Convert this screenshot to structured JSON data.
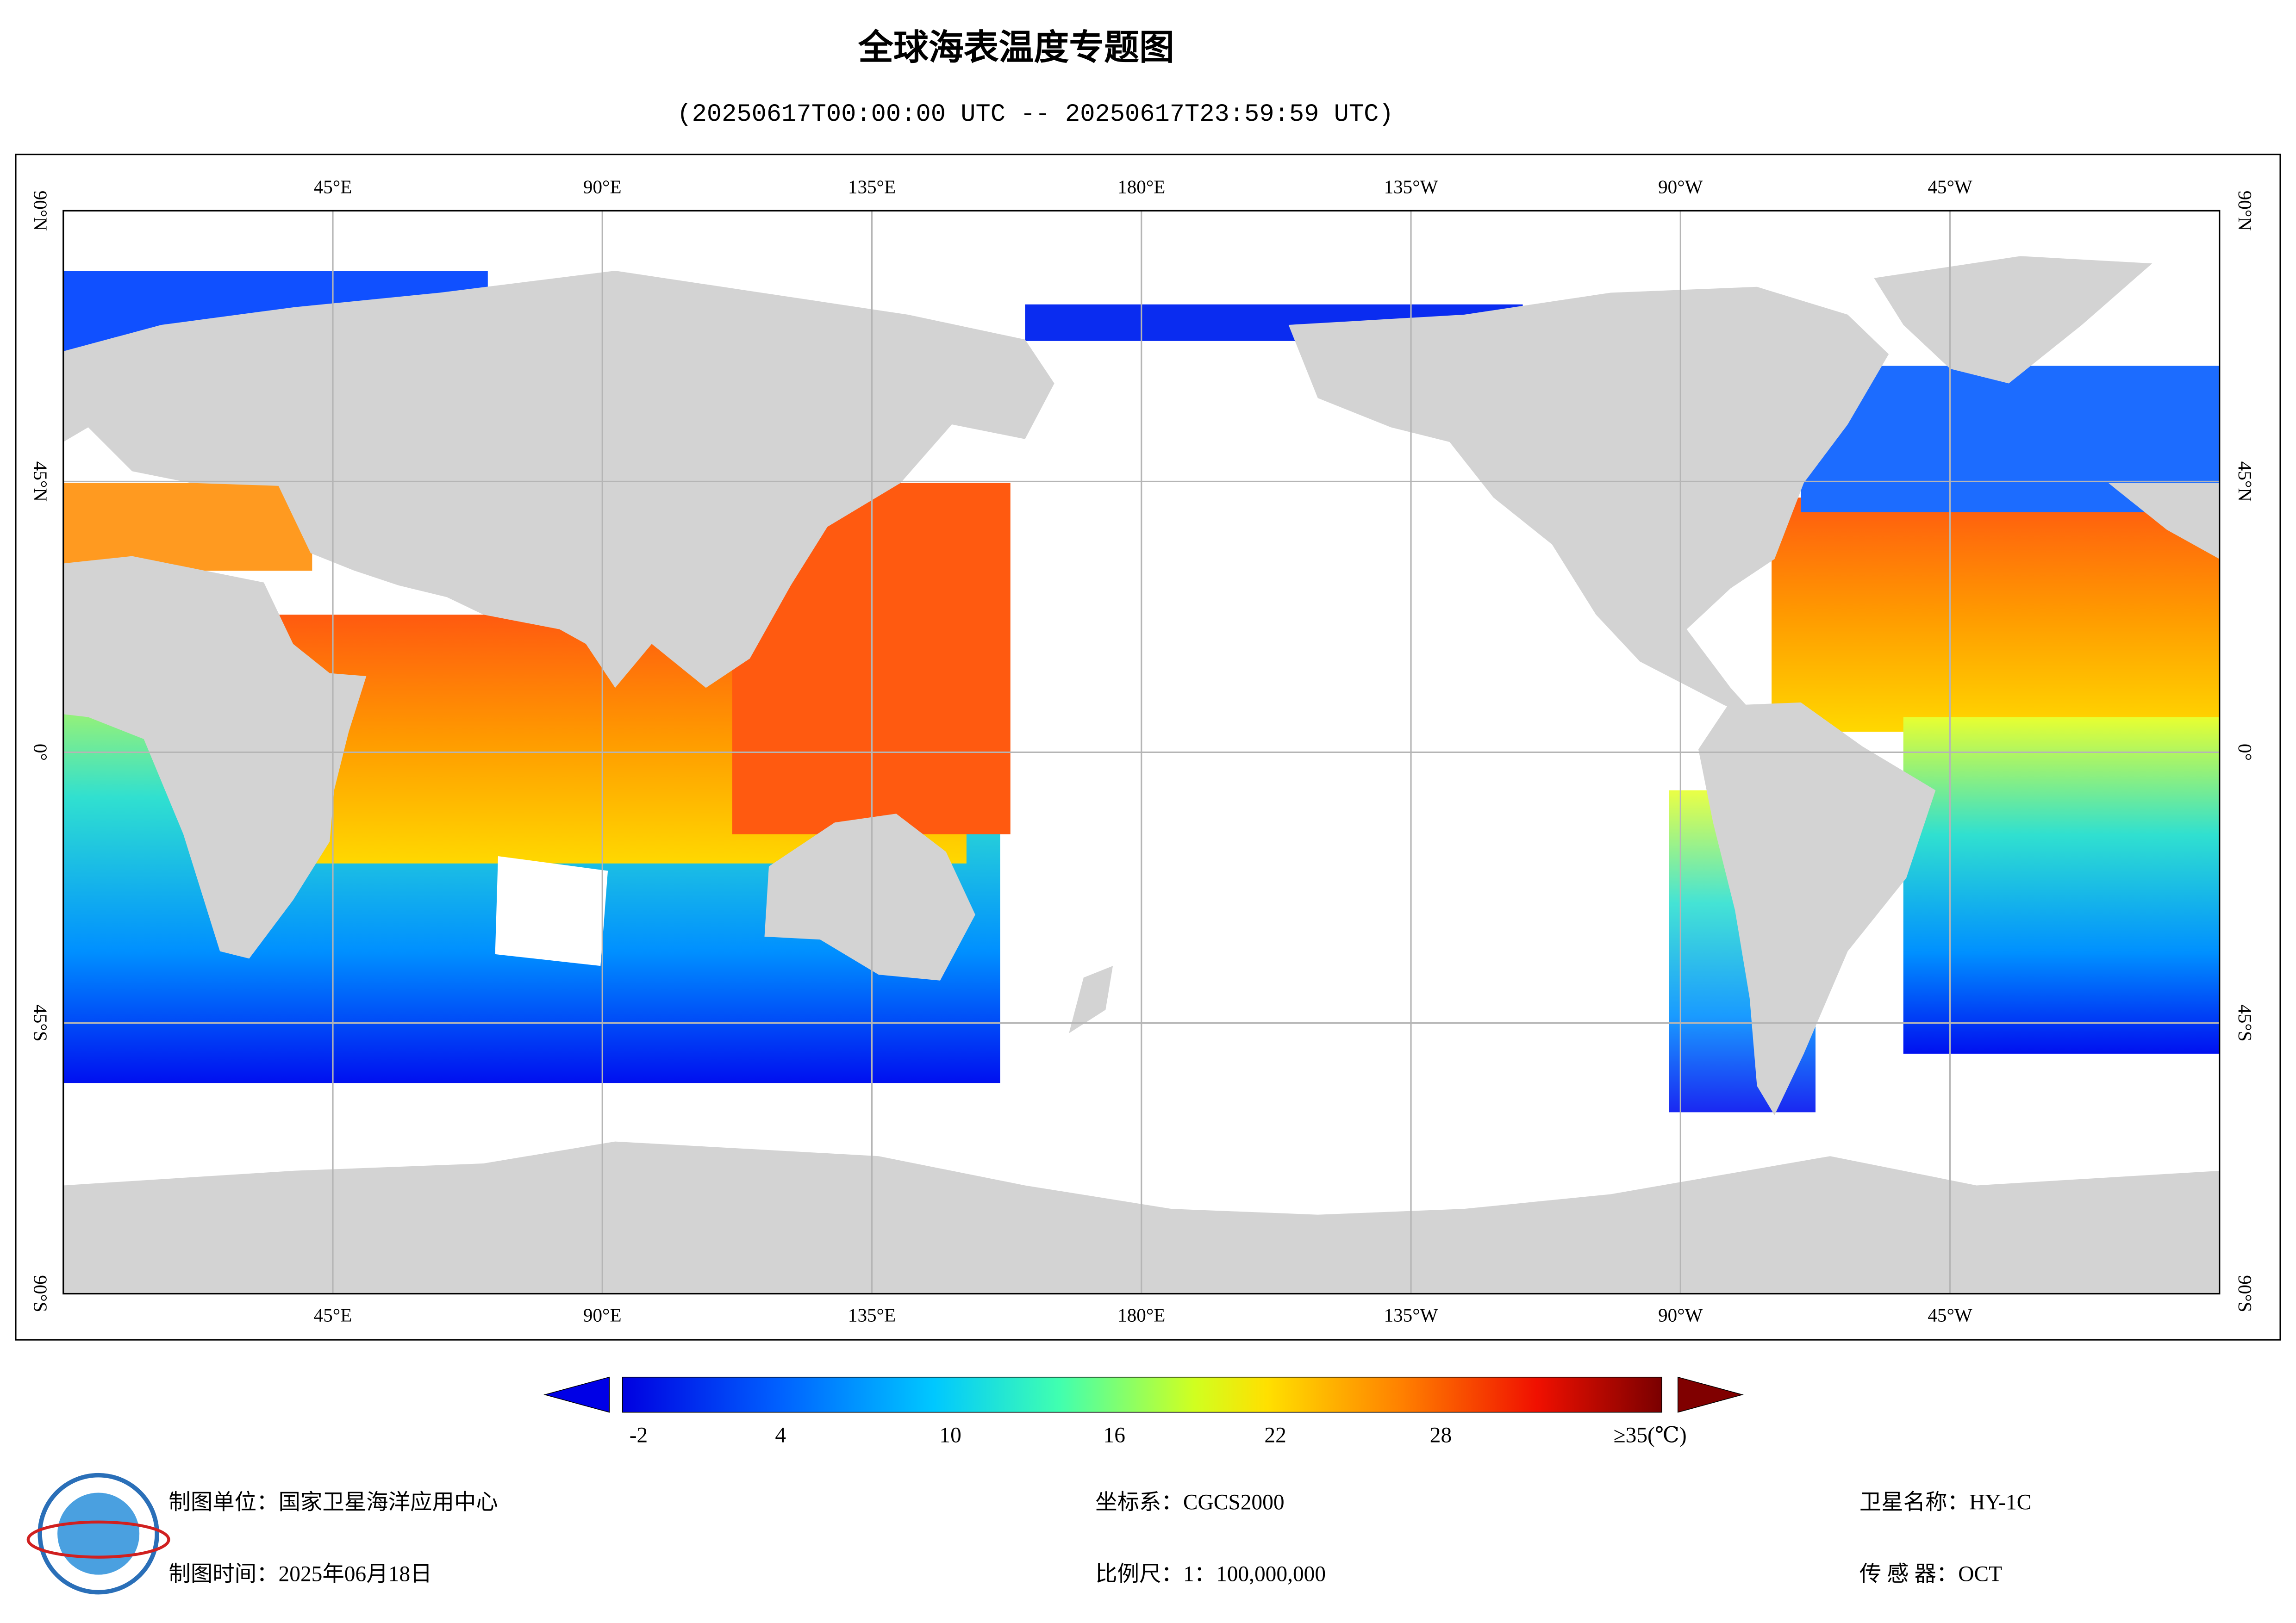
{
  "header": {
    "title": "全球海表温度专题图",
    "subtitle": "(20250617T00:00:00 UTC -- 20250617T23:59:59 UTC)"
  },
  "map": {
    "lon_labels": [
      "45°E",
      "90°E",
      "135°E",
      "180°E",
      "135°W",
      "90°W",
      "45°W"
    ],
    "lat_labels": [
      "90°N",
      "45°N",
      "0°",
      "45°S",
      "90°S"
    ]
  },
  "colorbar": {
    "tick_labels": [
      "-2",
      "4",
      "10",
      "16",
      "22",
      "28",
      "≥35(℃)"
    ]
  },
  "footer": {
    "producer": "制图单位：国家卫星海洋应用中心",
    "date": "制图时间：2025年06月18日",
    "crs": "坐标系：CGCS2000",
    "scale": "比例尺：1：100,000,000",
    "satellite": "卫星名称：HY-1C",
    "sensor": "传 感 器：OCT"
  }
}
